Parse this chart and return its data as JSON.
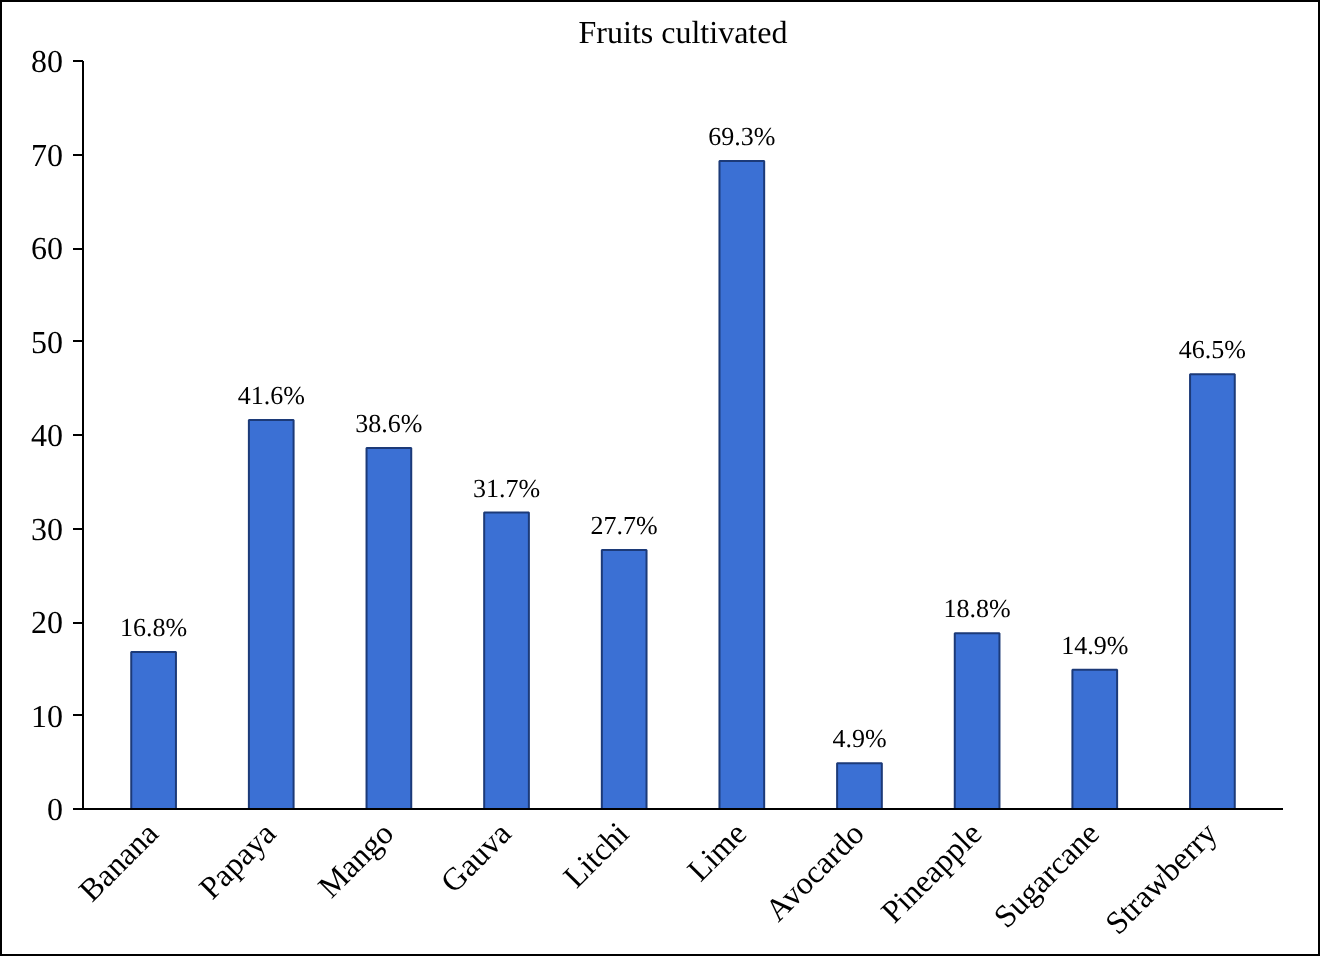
{
  "chart_data": {
    "type": "bar",
    "title": "Fruits cultivated",
    "categories": [
      "Banana",
      "Papaya",
      "Mango",
      "Gauva",
      "Litchi",
      "Lime",
      "Avocardo",
      "Pineapple",
      "Sugarcane",
      "Strawberry"
    ],
    "values": [
      16.8,
      41.6,
      38.6,
      31.7,
      27.7,
      69.3,
      4.9,
      18.8,
      14.9,
      46.5
    ],
    "value_labels": [
      "16.8%",
      "41.6%",
      "38.6%",
      "31.7%",
      "27.7%",
      "69.3%",
      "4.9%",
      "18.8%",
      "14.9%",
      "46.5%"
    ],
    "color": "#3b70d4",
    "ylim": [
      0,
      80
    ],
    "yticks": [
      0,
      10,
      20,
      30,
      40,
      50,
      60,
      70,
      80
    ],
    "grid": false
  }
}
